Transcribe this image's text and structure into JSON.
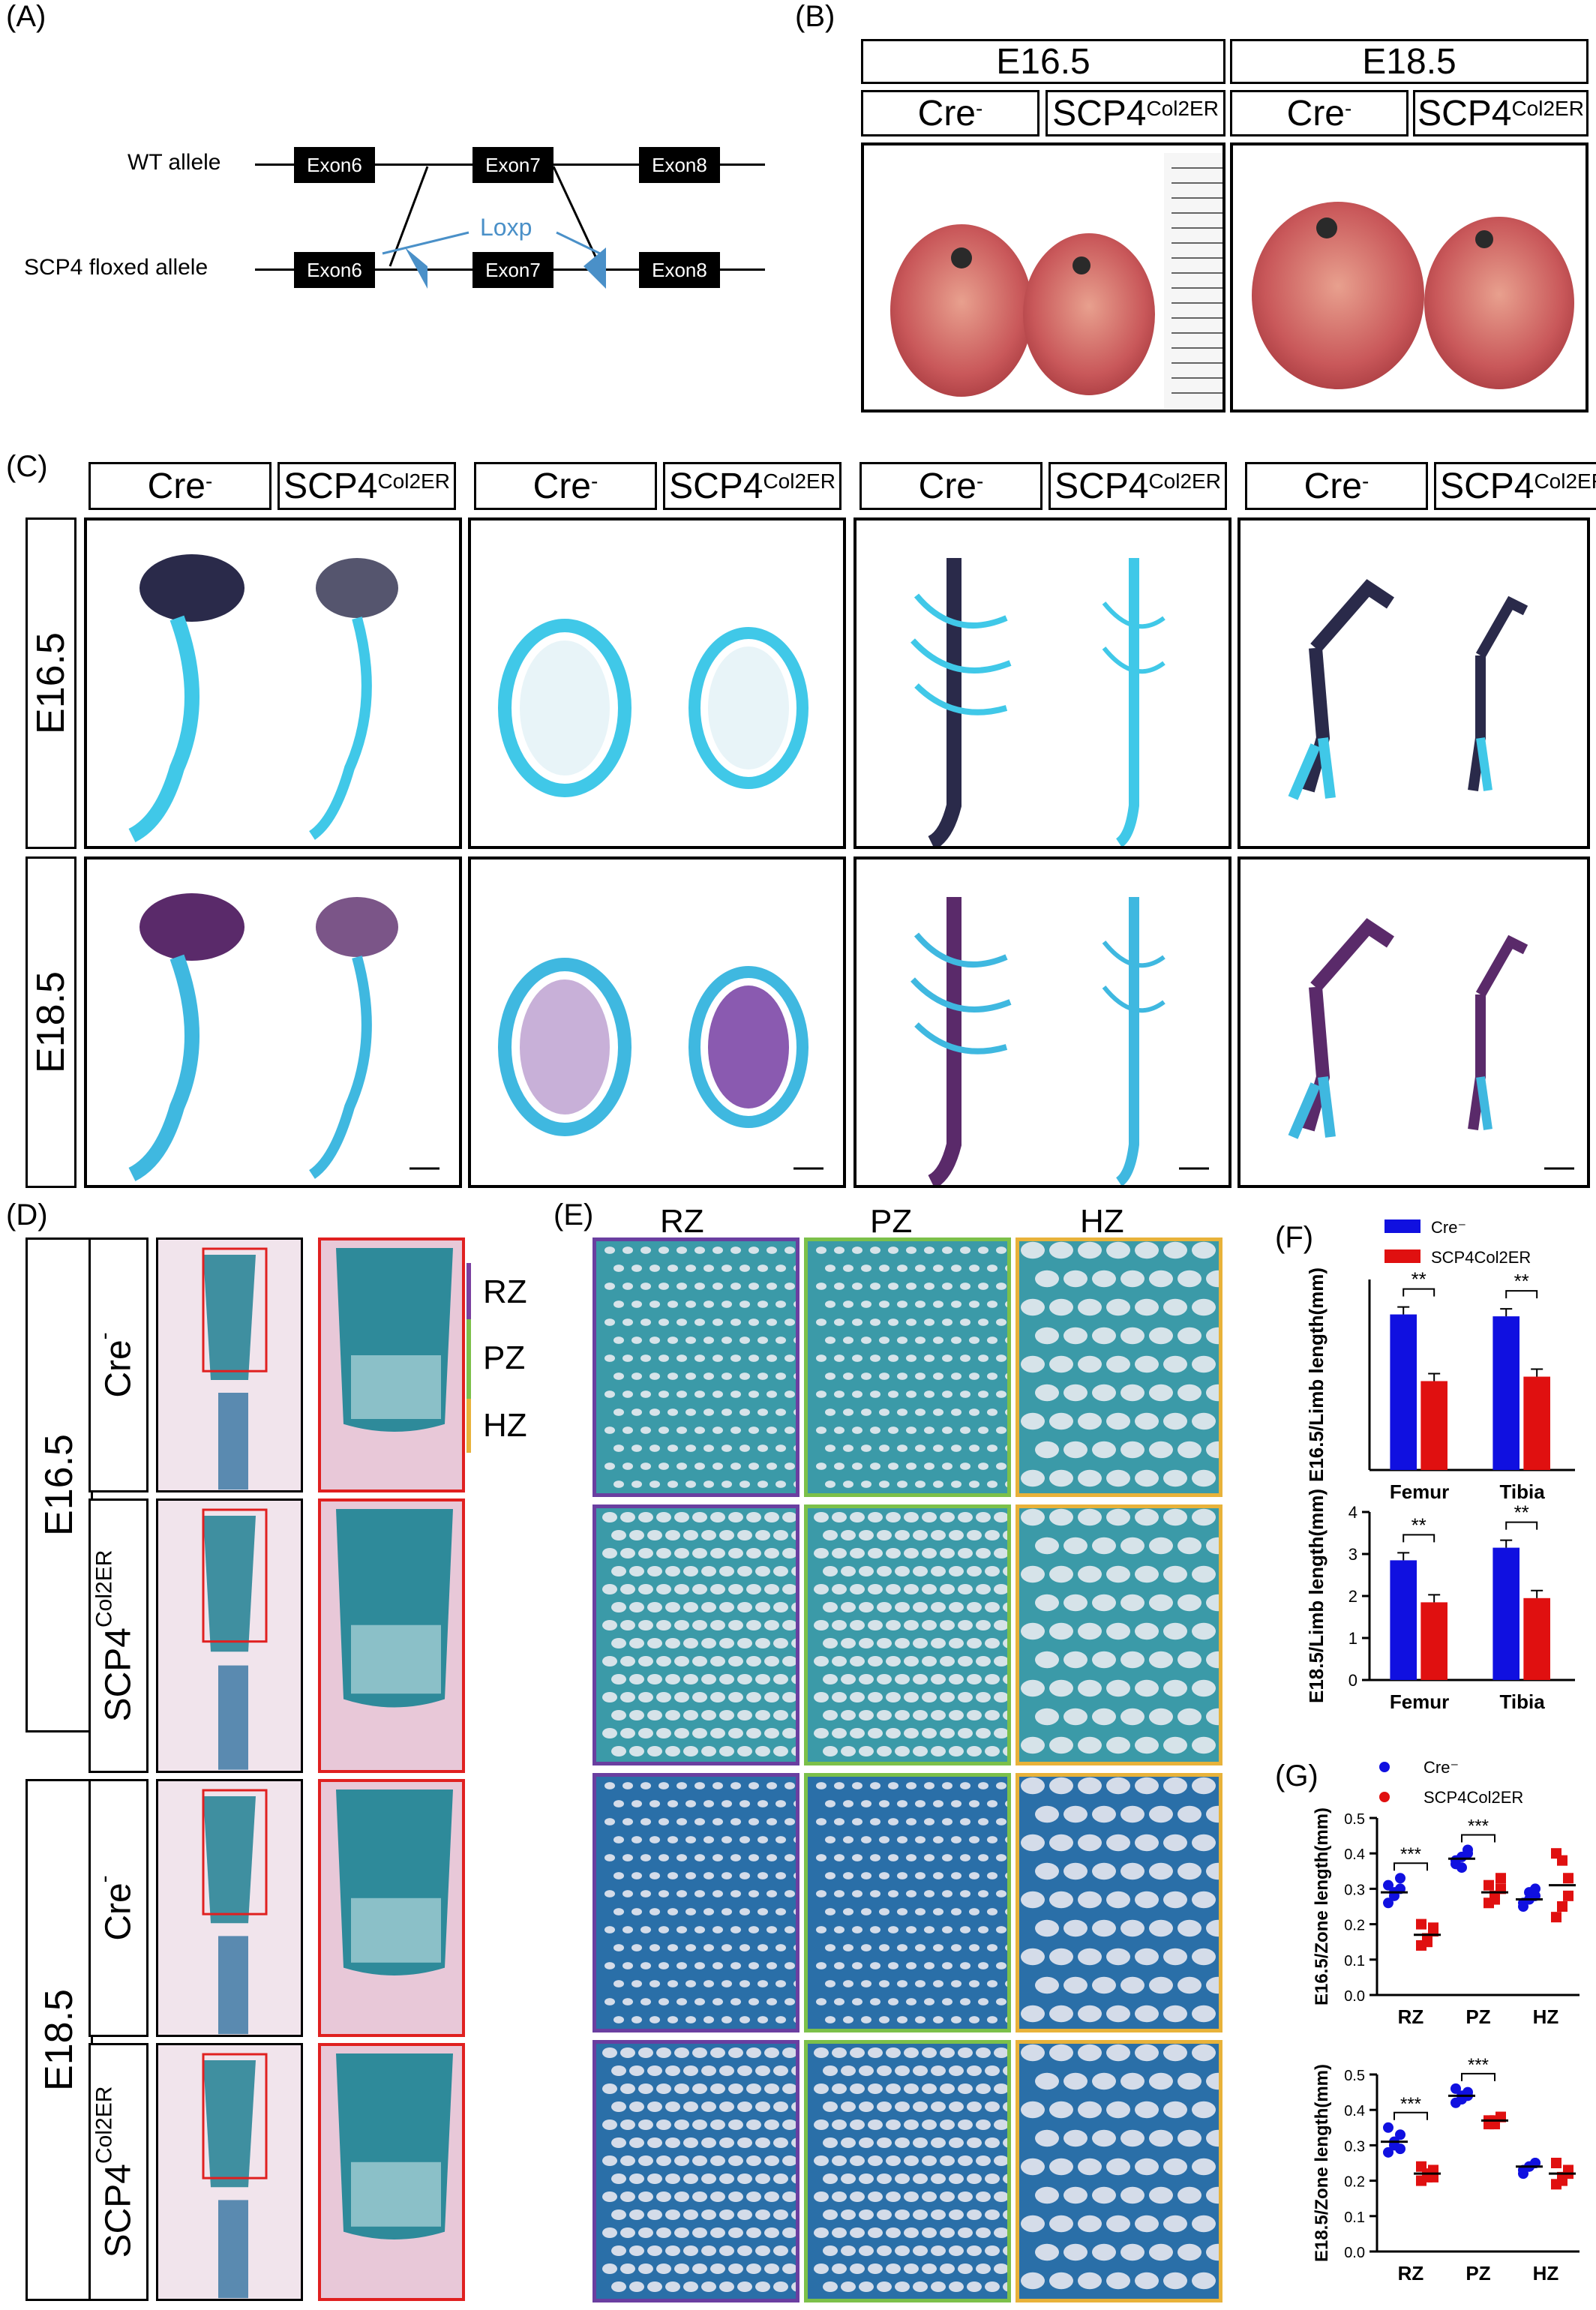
{
  "panels": {
    "A": {
      "letter": "(A)",
      "wt_label": "WT allele",
      "floxed_label": "SCP4 floxed allele",
      "exons": [
        "Exon6",
        "Exon7",
        "Exon8"
      ],
      "loxp_label": "Loxp",
      "loxp_color": "#4a90c8"
    },
    "B": {
      "letter": "(B)",
      "stages": [
        "E16.5",
        "E18.5"
      ],
      "genotype_cre": "Cre",
      "genotype_cre_sup": "-",
      "genotype_scp": "SCP4",
      "genotype_scp_sup": "Col2ER"
    },
    "C": {
      "letter": "(C)",
      "col_labels": [
        "Cre",
        "SCP4",
        "Cre",
        "SCP4",
        "Cre",
        "SCP4",
        "Cre",
        "SCP4"
      ],
      "row_labels": [
        "E16.5",
        "E18.5"
      ],
      "sup_cre": "-",
      "sup_scp": "Col2ER"
    },
    "D": {
      "letter": "(D)",
      "stage_labels": [
        "E16.5",
        "E18.5"
      ],
      "row_labels": [
        "Cre",
        "SCP4",
        "Cre",
        "SCP4"
      ],
      "row_sups": [
        "-",
        "Col2ER",
        "-",
        "Col2ER"
      ],
      "zones": [
        "RZ",
        "PZ",
        "HZ"
      ]
    },
    "E": {
      "letter": "(E)",
      "col_labels": [
        "RZ",
        "PZ",
        "HZ"
      ],
      "col_colors": [
        "#6a3fa0",
        "#7cc04a",
        "#e8b23a"
      ]
    },
    "F": {
      "letter": "(F)"
    },
    "G": {
      "letter": "(G)"
    }
  },
  "chart_data": [
    {
      "type": "bar",
      "panel": "F-top",
      "categories": [
        "Femur",
        "Tibia"
      ],
      "series": [
        {
          "name": "Cre⁻",
          "values": [
            2.45,
            2.42
          ],
          "color": "#1010e0"
        },
        {
          "name": "SCP4Col2ER",
          "values": [
            1.4,
            1.47
          ],
          "color": "#e01010"
        }
      ],
      "ylabel": "E16.5/Limb length(mm)",
      "significance": [
        "**",
        "**"
      ]
    },
    {
      "type": "bar",
      "panel": "F-bottom",
      "categories": [
        "Femur",
        "Tibia"
      ],
      "series": [
        {
          "name": "Cre⁻",
          "values": [
            2.85,
            3.15
          ],
          "color": "#1010e0"
        },
        {
          "name": "SCP4Col2ER",
          "values": [
            1.85,
            1.95
          ],
          "color": "#e01010"
        }
      ],
      "ylabel": "E18.5/Limb length(mm)",
      "ylim": [
        0,
        4
      ],
      "yticks": [
        "0",
        "1",
        "2",
        "3",
        "4"
      ],
      "significance": [
        "**",
        "**"
      ]
    },
    {
      "type": "scatter",
      "panel": "G-top",
      "categories": [
        "RZ",
        "PZ",
        "HZ"
      ],
      "series": [
        {
          "name": "Cre⁻",
          "color": "#1010e0",
          "means": [
            0.29,
            0.385,
            0.27
          ],
          "points": [
            [
              0.26,
              0.28,
              0.3,
              0.31,
              0.29,
              0.33
            ],
            [
              0.37,
              0.39,
              0.4,
              0.38,
              0.36,
              0.41
            ],
            [
              0.25,
              0.27,
              0.28,
              0.26,
              0.29,
              0.3
            ]
          ]
        },
        {
          "name": "SCP4Col2ER",
          "color": "#e01010",
          "means": [
            0.17,
            0.29,
            0.31
          ],
          "points": [
            [
              0.14,
              0.16,
              0.18,
              0.2,
              0.15,
              0.19
            ],
            [
              0.26,
              0.28,
              0.3,
              0.31,
              0.27,
              0.33
            ],
            [
              0.22,
              0.25,
              0.33,
              0.4,
              0.38,
              0.28
            ]
          ]
        }
      ],
      "ylabel": "E16.5/Zone length(mm)",
      "ylim": [
        0,
        0.5
      ],
      "yticks": [
        "0.0",
        "0.1",
        "0.2",
        "0.3",
        "0.4",
        "0.5"
      ],
      "significance": [
        "***",
        "***",
        ""
      ]
    },
    {
      "type": "scatter",
      "panel": "G-bottom",
      "categories": [
        "RZ",
        "PZ",
        "HZ"
      ],
      "series": [
        {
          "name": "Cre⁻",
          "color": "#1010e0",
          "means": [
            0.31,
            0.44,
            0.24
          ],
          "points": [
            [
              0.28,
              0.3,
              0.33,
              0.35,
              0.31,
              0.29
            ],
            [
              0.42,
              0.44,
              0.45,
              0.46,
              0.43,
              0.44
            ],
            [
              0.23,
              0.24,
              0.25,
              0.22,
              0.24,
              0.25
            ]
          ]
        },
        {
          "name": "SCP4Col2ER",
          "color": "#e01010",
          "means": [
            0.22,
            0.37,
            0.22
          ],
          "points": [
            [
              0.2,
              0.21,
              0.23,
              0.24,
              0.22,
              0.21
            ],
            [
              0.36,
              0.37,
              0.38,
              0.37,
              0.36,
              0.38
            ],
            [
              0.19,
              0.2,
              0.23,
              0.25,
              0.21,
              0.22
            ]
          ]
        }
      ],
      "ylabel": "E18.5/Zone length(mm)",
      "ylim": [
        0,
        0.5
      ],
      "yticks": [
        "0.0",
        "0.1",
        "0.2",
        "0.3",
        "0.4",
        "0.5"
      ],
      "significance": [
        "***",
        "***",
        ""
      ]
    }
  ]
}
